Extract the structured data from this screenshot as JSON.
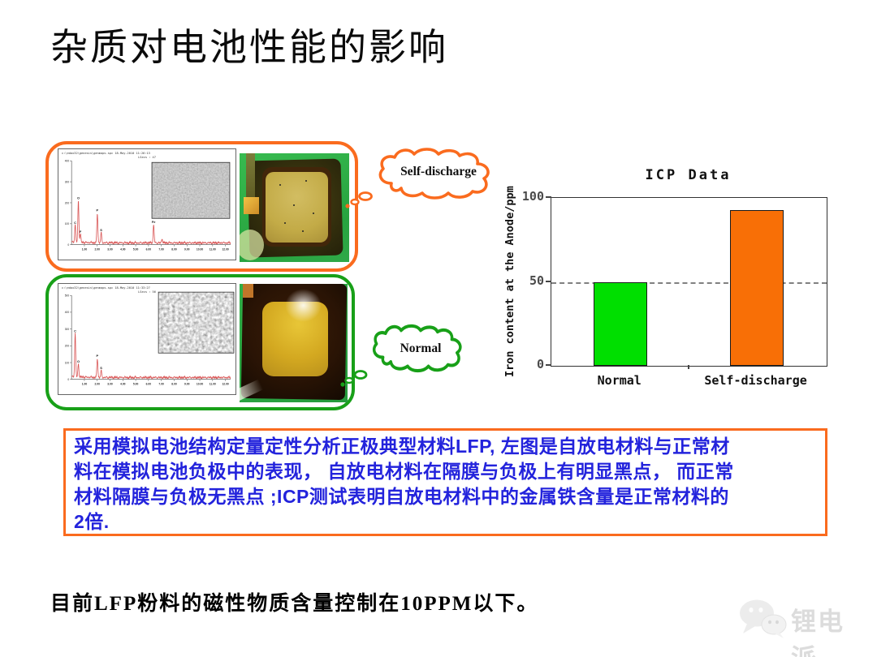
{
  "slide": {
    "title": "杂质对电池性能的影响",
    "bottom_note": "目前LFP粉料的磁性物质含量控制在10PPM以下。",
    "watermark_text": "锂电派",
    "accent_orange": "#FA6B1E",
    "accent_green": "#18A018"
  },
  "bubbles": {
    "self_discharge_label": "Self-discharge",
    "normal_label": "Normal"
  },
  "infobox": {
    "border_color": "#FA6B1E",
    "text_color": "#2323DC",
    "lines": [
      "采用模拟电池结构定量定性分析正极典型材料LFP, 左图是自放电材料与正常材",
      "料在模拟电池负极中的表现， 自放电材料在隔膜与负极上有明显黑点， 而正常",
      "材料隔膜与负极无黑点 ;ICP测试表明自放电材料中的金属铁含量是正常材料的",
      "2倍."
    ]
  },
  "chart_data": [
    {
      "type": "bar",
      "title": "ICP Data",
      "ylabel": "Iron content at the Anode/ppm",
      "categories": [
        "Normal",
        "Self-discharge"
      ],
      "values": [
        50,
        93
      ],
      "colors": [
        "#00DF00",
        "#F86F06"
      ],
      "ylim": [
        0,
        100
      ],
      "yticks": [
        0,
        50,
        100
      ],
      "gridline": 50,
      "grid": "horizontal dashed line at 50",
      "legend": "none"
    },
    {
      "type": "line",
      "name": "EDS spectrum - self-discharge sample",
      "header_line1": "c:\\edax32\\genesis\\genmaps.spc  18-May-2010 11:26:13",
      "header_line2": "LSecs : 47",
      "line_color": "#D95555",
      "x_range_keV": [
        0,
        12.4
      ],
      "xticks": [
        "1.00",
        "2.00",
        "3.00",
        "4.00",
        "5.00",
        "6.00",
        "7.00",
        "8.00",
        "9.00",
        "10.00",
        "11.00",
        "12.00"
      ],
      "ytick_labels": [
        "400",
        "300",
        "200",
        "100",
        "0"
      ],
      "peaks": [
        {
          "label": "C",
          "x": 0.28,
          "h": 0.21
        },
        {
          "label": "O",
          "x": 0.53,
          "h": 0.51
        },
        {
          "label": "F",
          "x": 0.69,
          "h": 0.1
        },
        {
          "label": "P",
          "x": 2.01,
          "h": 0.36
        },
        {
          "label": "S",
          "x": 2.31,
          "h": 0.12
        },
        {
          "label": "Fe",
          "x": 6.4,
          "h": 0.22
        },
        {
          "label": "",
          "x": 7.06,
          "h": 0.05
        }
      ],
      "inset": "sem-image-fine-texture"
    },
    {
      "type": "line",
      "name": "EDS spectrum - normal sample",
      "header_line1": "c:\\edax32\\genesis\\genmaps.spc  18-May-2010 11:33:27",
      "header_line2": "LSecs : 56",
      "line_color": "#D95555",
      "x_range_keV": [
        0,
        12.4
      ],
      "xticks": [
        "1.00",
        "2.00",
        "3.00",
        "4.00",
        "5.00",
        "6.00",
        "7.00",
        "8.00",
        "9.00",
        "10.00",
        "11.00",
        "12.00"
      ],
      "ytick_labels": [
        "500",
        "400",
        "300",
        "200",
        "100",
        "0"
      ],
      "peaks": [
        {
          "label": "C",
          "x": 0.28,
          "h": 0.53
        },
        {
          "label": "O",
          "x": 0.53,
          "h": 0.16
        },
        {
          "label": "P",
          "x": 2.01,
          "h": 0.23
        },
        {
          "label": "S",
          "x": 2.31,
          "h": 0.08
        }
      ],
      "inset": "sem-image-coarse-texture"
    }
  ]
}
